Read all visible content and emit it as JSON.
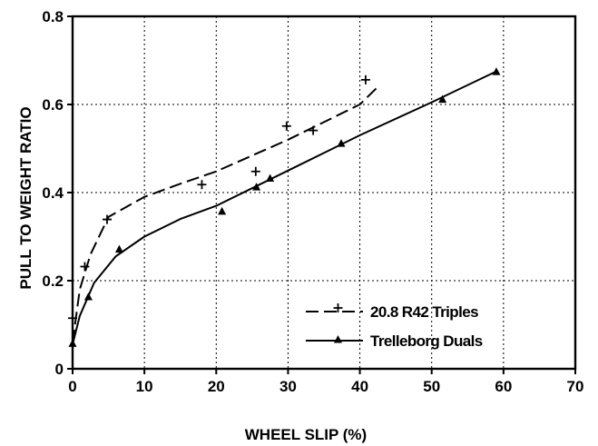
{
  "chart_data": {
    "type": "scatter",
    "xlabel": "WHEEL SLIP (%)",
    "ylabel": "PULL TO WEIGHT RATIO",
    "xlim": [
      0,
      70
    ],
    "ylim": [
      0,
      0.8
    ],
    "x_ticks": [
      "0",
      "10",
      "20",
      "30",
      "40",
      "50",
      "60",
      "70"
    ],
    "y_ticks": [
      "0",
      "0.2",
      "0.4",
      "0.6",
      "0.8"
    ],
    "grid": true,
    "legend_position": "bottom-right",
    "series": [
      {
        "name": "20.8 R42 Triples",
        "marker": "plus",
        "line_style": "dashed",
        "points": [
          {
            "x": 0,
            "y": 0.115
          },
          {
            "x": 1.7,
            "y": 0.232
          },
          {
            "x": 4.8,
            "y": 0.339
          },
          {
            "x": 18,
            "y": 0.418
          },
          {
            "x": 25.5,
            "y": 0.448
          },
          {
            "x": 29.8,
            "y": 0.551
          },
          {
            "x": 33.5,
            "y": 0.541
          },
          {
            "x": 40.8,
            "y": 0.656
          }
        ],
        "fit": [
          {
            "x": 0,
            "y": 0.06
          },
          {
            "x": 1,
            "y": 0.18
          },
          {
            "x": 2.5,
            "y": 0.26
          },
          {
            "x": 5,
            "y": 0.345
          },
          {
            "x": 10,
            "y": 0.39
          },
          {
            "x": 15,
            "y": 0.42
          },
          {
            "x": 20,
            "y": 0.448
          },
          {
            "x": 30,
            "y": 0.52
          },
          {
            "x": 40,
            "y": 0.6
          },
          {
            "x": 42.5,
            "y": 0.64
          }
        ]
      },
      {
        "name": "Trelleborg Duals",
        "marker": "triangle",
        "line_style": "solid",
        "points": [
          {
            "x": 0,
            "y": 0.057
          },
          {
            "x": 2.2,
            "y": 0.163
          },
          {
            "x": 6.5,
            "y": 0.271
          },
          {
            "x": 20.8,
            "y": 0.357
          },
          {
            "x": 25.6,
            "y": 0.412
          },
          {
            "x": 27.5,
            "y": 0.432
          },
          {
            "x": 37.4,
            "y": 0.511
          },
          {
            "x": 51.5,
            "y": 0.611
          },
          {
            "x": 59,
            "y": 0.674
          }
        ],
        "fit": [
          {
            "x": 0,
            "y": 0.055
          },
          {
            "x": 1,
            "y": 0.12
          },
          {
            "x": 3,
            "y": 0.195
          },
          {
            "x": 6,
            "y": 0.255
          },
          {
            "x": 10,
            "y": 0.3
          },
          {
            "x": 15,
            "y": 0.34
          },
          {
            "x": 20,
            "y": 0.37
          },
          {
            "x": 30,
            "y": 0.45
          },
          {
            "x": 40,
            "y": 0.53
          },
          {
            "x": 50,
            "y": 0.605
          },
          {
            "x": 59,
            "y": 0.675
          }
        ]
      }
    ]
  }
}
